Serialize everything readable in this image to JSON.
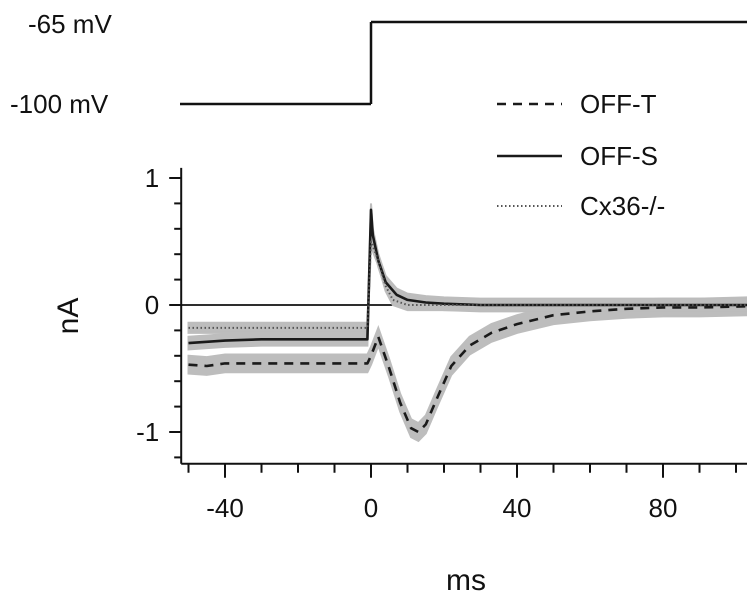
{
  "chart_data": {
    "type": "line",
    "xlabel": "ms",
    "ylabel": "nA",
    "xlim": [
      -52,
      103
    ],
    "ylim": [
      -1.25,
      1.08
    ],
    "x_ticks": [
      -40,
      0,
      40,
      80
    ],
    "x_tick_labels": [
      "-40",
      "0",
      "40",
      "80"
    ],
    "x_minor_step": 10,
    "y_ticks": [
      1,
      0,
      -1
    ],
    "y_tick_labels": [
      "1",
      "0",
      "-1"
    ],
    "y_minor_step": 0.2,
    "zero_line": true,
    "grid": false,
    "legend_position": "top-right",
    "voltage_protocol": {
      "holding_label": "-100 mV",
      "step_label": "-65 mV",
      "step_time_ms": 0
    },
    "series": [
      {
        "name": "OFF-T",
        "style": "dashed",
        "color": "#1a1a1a",
        "band": 0.07,
        "x": [
          -50,
          -45,
          -40,
          -30,
          -20,
          -10,
          -1,
          0,
          2,
          5,
          8,
          11,
          13,
          15,
          18,
          22,
          27,
          33,
          40,
          50,
          60,
          70,
          80,
          90,
          103
        ],
        "y": [
          -0.47,
          -0.48,
          -0.46,
          -0.46,
          -0.46,
          -0.46,
          -0.46,
          -0.4,
          -0.25,
          -0.5,
          -0.77,
          -0.97,
          -1.0,
          -0.94,
          -0.74,
          -0.48,
          -0.32,
          -0.22,
          -0.15,
          -0.08,
          -0.05,
          -0.03,
          -0.02,
          -0.02,
          -0.01
        ]
      },
      {
        "name": "OFF-S",
        "style": "solid",
        "color": "#1a1a1a",
        "band": 0.05,
        "x": [
          -50,
          -40,
          -30,
          -20,
          -10,
          -1,
          0,
          0.5,
          2,
          4,
          7,
          10,
          15,
          20,
          30,
          45,
          60,
          80,
          103
        ],
        "y": [
          -0.3,
          -0.28,
          -0.27,
          -0.27,
          -0.27,
          -0.27,
          0.75,
          0.55,
          0.35,
          0.18,
          0.08,
          0.04,
          0.02,
          0.01,
          0.0,
          0.0,
          0.0,
          0.0,
          0.0
        ]
      },
      {
        "name": "Cx36-/-",
        "style": "dotted",
        "color": "#555555",
        "band": 0.04,
        "x": [
          -50,
          -40,
          -30,
          -20,
          -10,
          -1,
          0,
          2,
          4,
          6,
          10,
          20,
          40,
          60,
          80,
          103
        ],
        "y": [
          -0.18,
          -0.18,
          -0.18,
          -0.18,
          -0.18,
          -0.18,
          0.5,
          0.35,
          0.15,
          0.04,
          0.0,
          0.0,
          0.0,
          0.0,
          0.0,
          0.0
        ]
      }
    ]
  }
}
